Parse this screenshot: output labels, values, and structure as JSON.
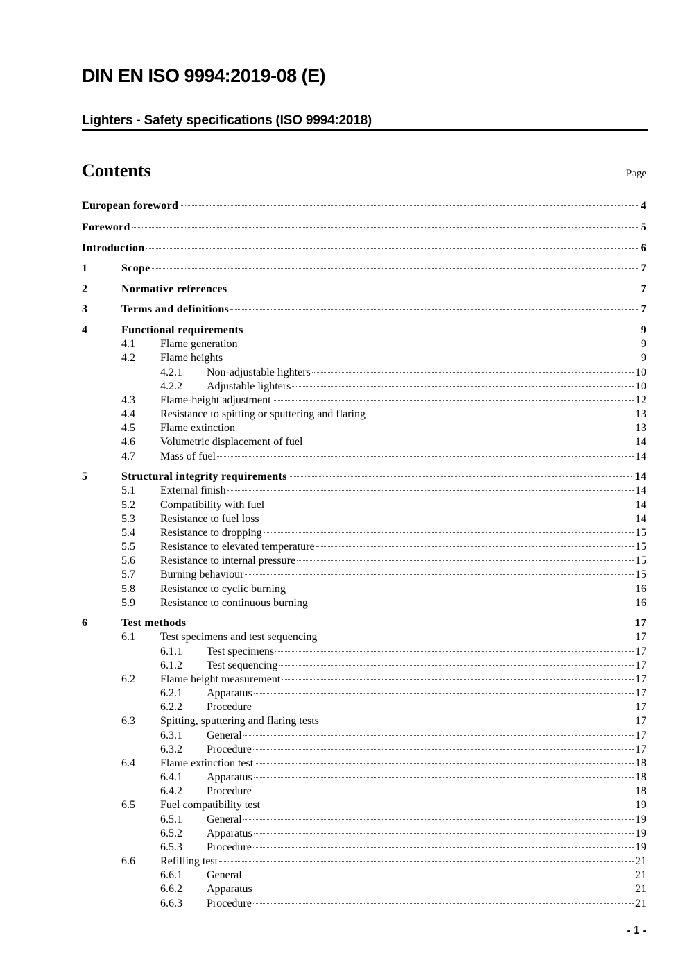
{
  "document": {
    "id": "DIN EN ISO 9994:2019-08 (E)",
    "subtitle": "Lighters - Safety specifications (ISO 9994:2018)",
    "contents_heading": "Contents",
    "page_column_label": "Page",
    "page_footer": "- 1 -"
  },
  "toc": [
    {
      "num": "",
      "title": "European  foreword",
      "page": "4",
      "level": 0
    },
    {
      "num": "",
      "title": "Foreword",
      "page": "5",
      "level": 0
    },
    {
      "num": "",
      "title": "Introduction",
      "page": "6",
      "level": 0
    },
    {
      "num": "1",
      "title": "Scope",
      "page": "7",
      "level": 0
    },
    {
      "num": "2",
      "title": "Normative references",
      "page": "7",
      "level": 0
    },
    {
      "num": "3",
      "title": "Terms and definitions",
      "page": "7",
      "level": 0
    },
    {
      "num": "4",
      "title": "Functional requirements",
      "page": "9",
      "level": 0
    },
    {
      "num": "4.1",
      "title": "Flame generation",
      "page": "9",
      "level": 1
    },
    {
      "num": "4.2",
      "title": "Flame heights",
      "page": "9",
      "level": 1
    },
    {
      "num": "4.2.1",
      "title": "Non-adjustable lighters",
      "page": "10",
      "level": 2
    },
    {
      "num": "4.2.2",
      "title": "Adjustable lighters",
      "page": "10",
      "level": 2
    },
    {
      "num": "4.3",
      "title": "Flame-height adjustment",
      "page": "12",
      "level": 1
    },
    {
      "num": "4.4",
      "title": "Resistance to spitting or sputtering and flaring",
      "page": "13",
      "level": 1
    },
    {
      "num": "4.5",
      "title": "Flame extinction",
      "page": "13",
      "level": 1
    },
    {
      "num": "4.6",
      "title": "Volumetric displacement of fuel",
      "page": "14",
      "level": 1
    },
    {
      "num": "4.7",
      "title": "Mass of fuel",
      "page": "14",
      "level": 1
    },
    {
      "num": "5",
      "title": "Structural integrity requirements",
      "page": "14",
      "level": 0
    },
    {
      "num": "5.1",
      "title": "External finish",
      "page": "14",
      "level": 1
    },
    {
      "num": "5.2",
      "title": "Compatibility with fuel",
      "page": "14",
      "level": 1
    },
    {
      "num": "5.3",
      "title": "Resistance to fuel loss",
      "page": "14",
      "level": 1
    },
    {
      "num": "5.4",
      "title": "Resistance to dropping",
      "page": "15",
      "level": 1
    },
    {
      "num": "5.5",
      "title": "Resistance to elevated temperature",
      "page": "15",
      "level": 1
    },
    {
      "num": "5.6",
      "title": "Resistance to internal pressure",
      "page": "15",
      "level": 1
    },
    {
      "num": "5.7",
      "title": "Burning behaviour",
      "page": "15",
      "level": 1
    },
    {
      "num": "5.8",
      "title": "Resistance to cyclic burning",
      "page": "16",
      "level": 1
    },
    {
      "num": "5.9",
      "title": "Resistance to continuous burning",
      "page": "16",
      "level": 1
    },
    {
      "num": "6",
      "title": "Test methods",
      "page": "17",
      "level": 0
    },
    {
      "num": "6.1",
      "title": "Test specimens and test sequencing",
      "page": "17",
      "level": 1
    },
    {
      "num": "6.1.1",
      "title": "Test specimens",
      "page": "17",
      "level": 2
    },
    {
      "num": "6.1.2",
      "title": "Test sequencing",
      "page": "17",
      "level": 2
    },
    {
      "num": "6.2",
      "title": "Flame height measurement",
      "page": "17",
      "level": 1
    },
    {
      "num": "6.2.1",
      "title": "Apparatus",
      "page": "17",
      "level": 2
    },
    {
      "num": "6.2.2",
      "title": "Procedure",
      "page": "17",
      "level": 2
    },
    {
      "num": "6.3",
      "title": "Spitting, sputtering and flaring tests",
      "page": "17",
      "level": 1
    },
    {
      "num": "6.3.1",
      "title": "General",
      "page": "17",
      "level": 2
    },
    {
      "num": "6.3.2",
      "title": "Procedure",
      "page": "17",
      "level": 2
    },
    {
      "num": "6.4",
      "title": "Flame extinction test",
      "page": "18",
      "level": 1
    },
    {
      "num": "6.4.1",
      "title": "Apparatus",
      "page": "18",
      "level": 2
    },
    {
      "num": "6.4.2",
      "title": "Procedure",
      "page": "18",
      "level": 2
    },
    {
      "num": "6.5",
      "title": "Fuel compatibility test",
      "page": "19",
      "level": 1
    },
    {
      "num": "6.5.1",
      "title": "General",
      "page": "19",
      "level": 2
    },
    {
      "num": "6.5.2",
      "title": "Apparatus",
      "page": "19",
      "level": 2
    },
    {
      "num": "6.5.3",
      "title": "Procedure",
      "page": "19",
      "level": 2
    },
    {
      "num": "6.6",
      "title": "Refilling test",
      "page": "21",
      "level": 1
    },
    {
      "num": "6.6.1",
      "title": "General",
      "page": "21",
      "level": 2
    },
    {
      "num": "6.6.2",
      "title": "Apparatus",
      "page": "21",
      "level": 2
    },
    {
      "num": "6.6.3",
      "title": "Procedure",
      "page": "21",
      "level": 2
    }
  ]
}
